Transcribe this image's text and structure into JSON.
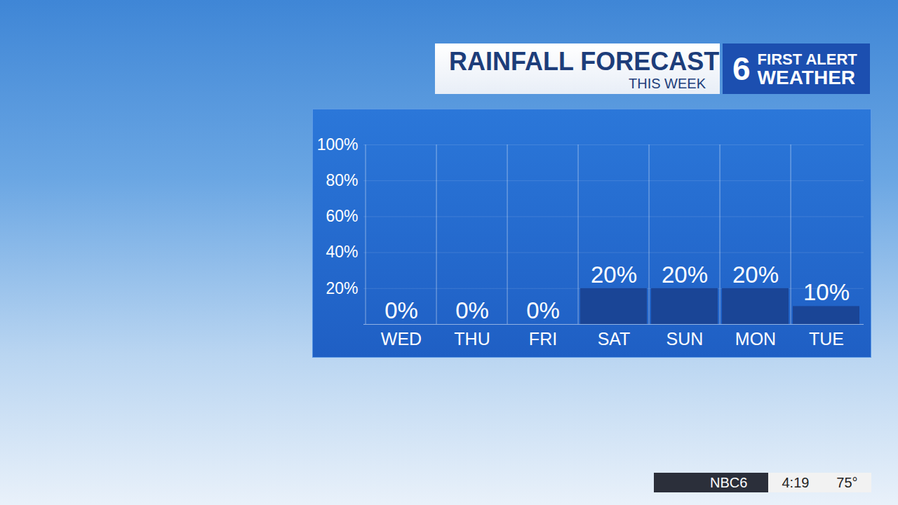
{
  "chart_data": {
    "type": "bar",
    "title": "RAINFALL FORECAST",
    "subtitle": "THIS WEEK",
    "annotations": [
      "6",
      "FIRST ALERT",
      "WEATHER",
      "NBC6",
      "4:19",
      "75°"
    ],
    "categories": [
      "WED",
      "THU",
      "FRI",
      "SAT",
      "SUN",
      "MON",
      "TUE"
    ],
    "values": [
      0,
      0,
      0,
      20,
      20,
      20,
      10
    ],
    "value_labels": [
      "0%",
      "0%",
      "0%",
      "20%",
      "20%",
      "20%",
      "10%"
    ],
    "data_labels": true,
    "color": "#1a4596",
    "ylim": [
      0,
      100
    ],
    "yticks": [
      {
        "value": 20,
        "label": "20%"
      },
      {
        "value": 40,
        "label": "40%"
      },
      {
        "value": 60,
        "label": "60%"
      },
      {
        "value": 80,
        "label": "80%"
      },
      {
        "value": 100,
        "label": "100%"
      }
    ],
    "grid": true
  }
}
